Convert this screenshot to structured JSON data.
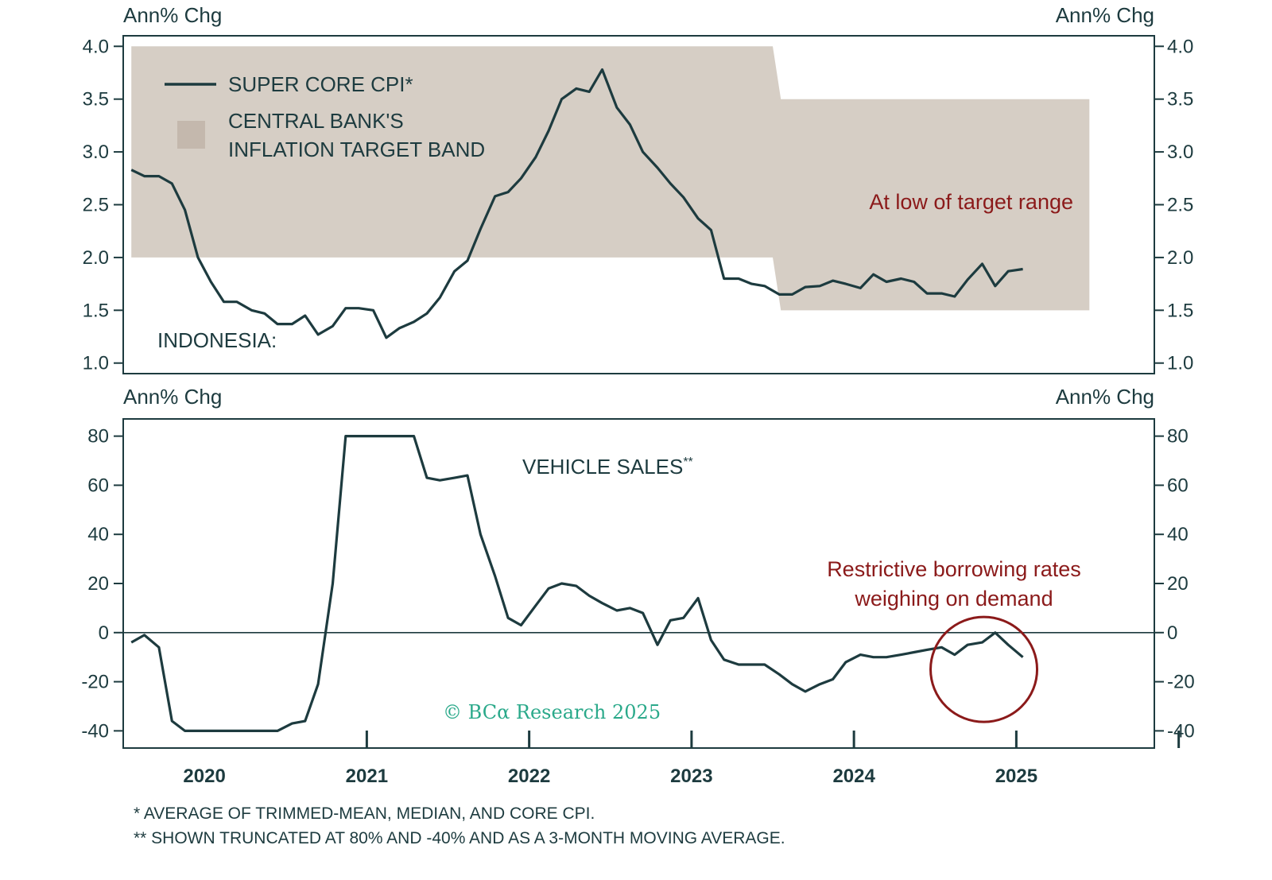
{
  "chart_data": [
    {
      "type": "line",
      "region_label": "INDONESIA:",
      "y_unit_left": "Ann% Chg",
      "y_unit_right": "Ann% Chg",
      "ylim": [
        0.9,
        4.1
      ],
      "yticks": [
        "1.0",
        "1.5",
        "2.0",
        "2.5",
        "3.0",
        "3.5",
        "4.0"
      ],
      "xlim": [
        2019.5,
        2025.85
      ],
      "legend": [
        {
          "name": "SUPER CORE CPI*",
          "kind": "line"
        },
        {
          "name": "CENTRAL BANK'S",
          "name_line2": "INFLATION TARGET BAND",
          "kind": "band"
        }
      ],
      "band": [
        {
          "x": 2019.55,
          "low": 2.0,
          "high": 4.0
        },
        {
          "x": 2023.5,
          "low": 2.0,
          "high": 4.0
        },
        {
          "x": 2023.55,
          "low": 1.5,
          "high": 3.5
        },
        {
          "x": 2025.45,
          "low": 1.5,
          "high": 3.5
        }
      ],
      "annotation": "At low of target range",
      "series": [
        {
          "name": "SUPER CORE CPI*",
          "x": [
            2019.55,
            2019.63,
            2019.72,
            2019.8,
            2019.88,
            2019.96,
            2020.04,
            2020.12,
            2020.2,
            2020.29,
            2020.37,
            2020.45,
            2020.54,
            2020.62,
            2020.7,
            2020.79,
            2020.87,
            2020.95,
            2021.04,
            2021.12,
            2021.2,
            2021.29,
            2021.37,
            2021.45,
            2021.54,
            2021.62,
            2021.7,
            2021.79,
            2021.87,
            2021.95,
            2022.04,
            2022.12,
            2022.2,
            2022.29,
            2022.37,
            2022.45,
            2022.54,
            2022.62,
            2022.7,
            2022.79,
            2022.87,
            2022.95,
            2023.04,
            2023.12,
            2023.2,
            2023.29,
            2023.37,
            2023.45,
            2023.54,
            2023.62,
            2023.7,
            2023.79,
            2023.87,
            2023.95,
            2024.04,
            2024.12,
            2024.2,
            2024.29,
            2024.37,
            2024.45,
            2024.54,
            2024.62,
            2024.7,
            2024.79,
            2024.87,
            2024.95,
            2025.04
          ],
          "y": [
            2.83,
            2.77,
            2.77,
            2.7,
            2.45,
            2.0,
            1.77,
            1.58,
            1.58,
            1.5,
            1.47,
            1.37,
            1.37,
            1.45,
            1.27,
            1.35,
            1.52,
            1.52,
            1.5,
            1.24,
            1.33,
            1.39,
            1.47,
            1.62,
            1.87,
            1.97,
            2.27,
            2.58,
            2.62,
            2.75,
            2.95,
            3.2,
            3.5,
            3.6,
            3.57,
            3.78,
            3.42,
            3.26,
            3.0,
            2.85,
            2.7,
            2.57,
            2.37,
            2.26,
            1.8,
            1.8,
            1.75,
            1.73,
            1.65,
            1.65,
            1.72,
            1.73,
            1.78,
            1.75,
            1.71,
            1.84,
            1.77,
            1.8,
            1.77,
            1.66,
            1.66,
            1.63,
            1.79,
            1.94,
            1.73,
            1.87,
            1.89
          ]
        }
      ]
    },
    {
      "type": "line",
      "y_unit_left": "Ann% Chg",
      "y_unit_right": "Ann% Chg",
      "ylim": [
        -47,
        87
      ],
      "yticks": [
        "-40",
        "-20",
        "0",
        "20",
        "40",
        "60",
        "80"
      ],
      "xlim": [
        2019.5,
        2025.85
      ],
      "xticks": [
        "2020",
        "2021",
        "2022",
        "2023",
        "2024",
        "2025"
      ],
      "series_label": "VEHICLE SALES",
      "series_label_sup": "**",
      "annotation_line1": "Restrictive borrowing rates",
      "annotation_line2": "weighing on demand",
      "highlight_circle": {
        "x": 2024.8,
        "y": -15
      },
      "series": [
        {
          "name": "VEHICLE SALES**",
          "x": [
            2019.55,
            2019.63,
            2019.72,
            2019.8,
            2019.88,
            2019.96,
            2020.04,
            2020.12,
            2020.2,
            2020.29,
            2020.37,
            2020.45,
            2020.54,
            2020.62,
            2020.7,
            2020.79,
            2020.87,
            2020.95,
            2021.04,
            2021.12,
            2021.2,
            2021.29,
            2021.37,
            2021.45,
            2021.54,
            2021.62,
            2021.7,
            2021.79,
            2021.87,
            2021.95,
            2022.04,
            2022.12,
            2022.2,
            2022.29,
            2022.37,
            2022.45,
            2022.54,
            2022.62,
            2022.7,
            2022.79,
            2022.87,
            2022.95,
            2023.04,
            2023.12,
            2023.2,
            2023.29,
            2023.37,
            2023.45,
            2023.54,
            2023.62,
            2023.7,
            2023.79,
            2023.87,
            2023.95,
            2024.04,
            2024.12,
            2024.2,
            2024.29,
            2024.37,
            2024.45,
            2024.54,
            2024.62,
            2024.7,
            2024.79,
            2024.87,
            2024.95,
            2025.04
          ],
          "y": [
            -4,
            -1,
            -6,
            -36,
            -40,
            -40,
            -40,
            -40,
            -40,
            -40,
            -40,
            -40,
            -37,
            -36,
            -21,
            20,
            80,
            80,
            80,
            80,
            80,
            80,
            63,
            62,
            63,
            64,
            40,
            23,
            6,
            3,
            11,
            18,
            20,
            19,
            15,
            12,
            9,
            10,
            8,
            -5,
            5,
            6,
            14,
            -3,
            -11,
            -13,
            -13,
            -13,
            -17,
            -21,
            -24,
            -21,
            -19,
            -12,
            -9,
            -10,
            -10,
            -9,
            -8,
            -7,
            -6,
            -9,
            -5,
            -4,
            0,
            -5,
            -10
          ]
        }
      ]
    }
  ],
  "watermark": "© BCα Research 2025",
  "footnotes": [
    "* AVERAGE OF TRIMMED-MEAN, MEDIAN, AND CORE CPI.",
    "** SHOWN TRUNCATED AT 80% AND -40% AND AS A 3-MONTH MOVING AVERAGE."
  ],
  "colors": {
    "line": "#1d3b3f",
    "band": "#d6cec5",
    "annotation": "#8b1a1a",
    "watermark": "#2aa98a",
    "frame": "#1d3b3f"
  }
}
